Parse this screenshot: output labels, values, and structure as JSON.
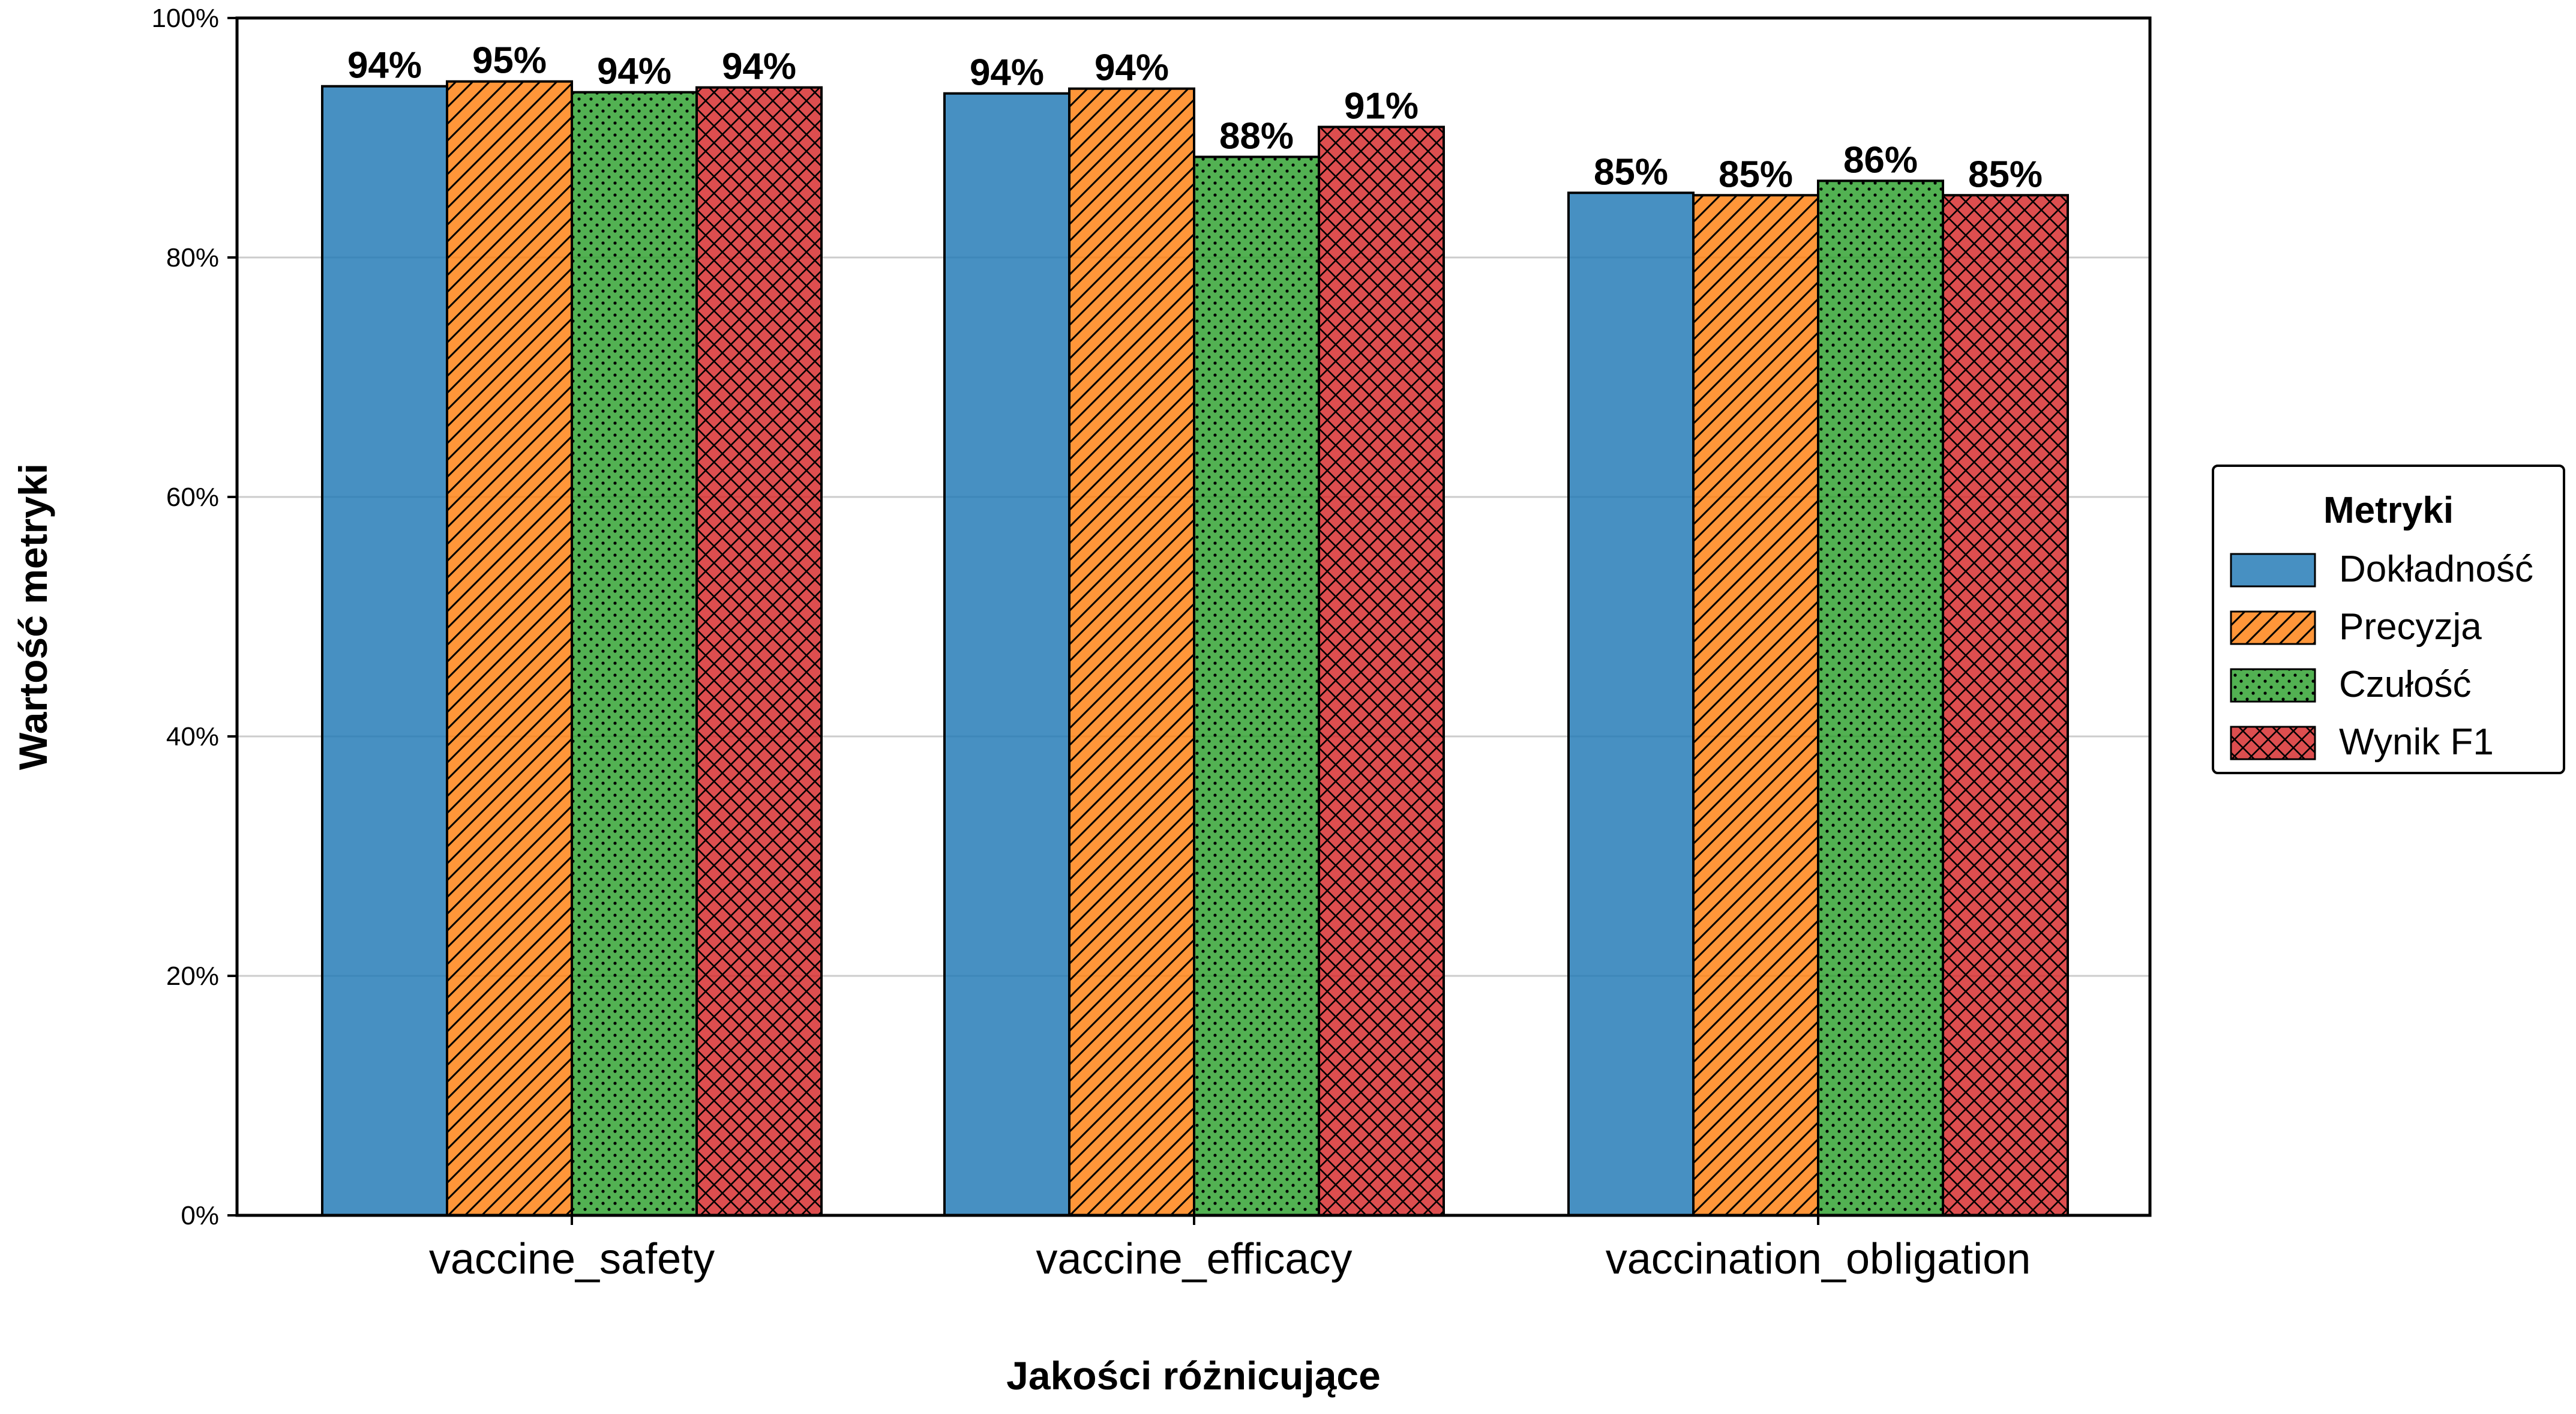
{
  "chart_data": {
    "type": "bar",
    "xlabel": "Jakości różnicujące",
    "ylabel": "Wartość metryki",
    "ylim": [
      0,
      1
    ],
    "yticks": [
      0,
      0.2,
      0.4,
      0.6,
      0.8,
      1.0
    ],
    "ytick_labels": [
      "0%",
      "20%",
      "40%",
      "60%",
      "80%",
      "100%"
    ],
    "categories": [
      "vaccine_safety",
      "vaccine_efficacy",
      "vaccination_obligation"
    ],
    "grid": "horizontal",
    "legend": {
      "title": "Metryki",
      "placement": "right"
    },
    "series": [
      {
        "name": "Dokładność",
        "color": "#1f77b4",
        "pattern": "none",
        "values": [
          0.943,
          0.937,
          0.854
        ],
        "labels": [
          "94%",
          "94%",
          "85%"
        ]
      },
      {
        "name": "Precyzja",
        "color": "#ff7f0e",
        "pattern": "diagonal-lines",
        "values": [
          0.947,
          0.941,
          0.852
        ],
        "labels": [
          "95%",
          "94%",
          "85%"
        ]
      },
      {
        "name": "Czułość",
        "color": "#2ca02c",
        "pattern": "dots",
        "values": [
          0.938,
          0.884,
          0.864
        ],
        "labels": [
          "94%",
          "88%",
          "86%"
        ]
      },
      {
        "name": "Wynik F1",
        "color": "#d62728",
        "pattern": "crosshatch",
        "values": [
          0.942,
          0.909,
          0.852
        ],
        "labels": [
          "94%",
          "91%",
          "85%"
        ]
      }
    ]
  }
}
